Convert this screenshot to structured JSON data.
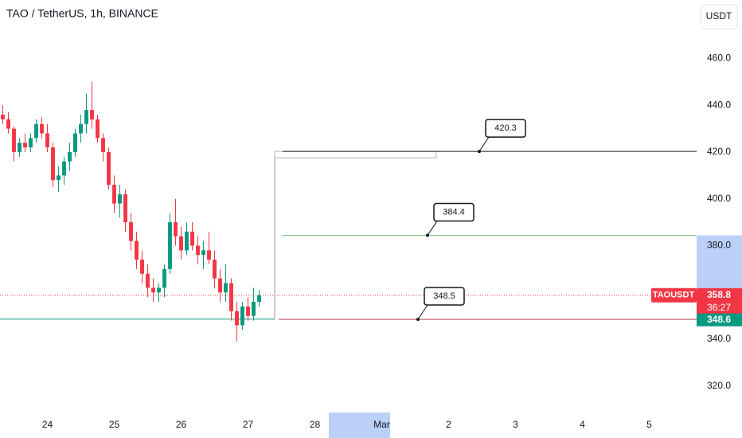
{
  "chart_data": {
    "type": "candlestick",
    "title": "TAO / TetherUS, 1h, BINANCE",
    "currency": "USDT",
    "symbol": "TAOUSDT",
    "countdown": "36:27",
    "up_color": "#089981",
    "down_color": "#f23645",
    "x": [
      -16,
      -14,
      -12,
      -10,
      -8,
      -6,
      -4,
      -2,
      0,
      2,
      4,
      6,
      8,
      10,
      12,
      14,
      16,
      18,
      20,
      22,
      24,
      26,
      28,
      30,
      32,
      34,
      36,
      38,
      40,
      42,
      44,
      46,
      48,
      50,
      52,
      54,
      56,
      58,
      60,
      62,
      64,
      66,
      68,
      70,
      72,
      74,
      76
    ],
    "open": [
      436,
      434,
      430,
      420,
      424,
      422,
      426,
      432,
      428,
      422,
      408,
      410,
      416,
      420,
      428,
      432,
      438,
      434,
      426,
      420,
      406,
      398,
      402,
      390,
      382,
      374,
      368,
      362,
      360,
      362,
      370,
      390,
      384,
      378,
      386,
      380,
      376,
      378,
      374,
      366,
      360,
      364,
      352,
      346,
      354,
      350,
      356
    ],
    "high": [
      440,
      437,
      431,
      426,
      428,
      428,
      434,
      435,
      432,
      424,
      414,
      418,
      424,
      430,
      436,
      445,
      450,
      436,
      428,
      422,
      410,
      406,
      404,
      394,
      386,
      378,
      372,
      366,
      364,
      372,
      394,
      400,
      388,
      390,
      390,
      384,
      382,
      386,
      378,
      370,
      372,
      366,
      356,
      356,
      358,
      362,
      361
    ],
    "low": [
      432,
      428,
      416,
      418,
      420,
      420,
      424,
      426,
      420,
      405,
      403,
      406,
      412,
      418,
      424,
      428,
      430,
      424,
      416,
      404,
      394,
      392,
      386,
      378,
      370,
      364,
      358,
      356,
      356,
      358,
      368,
      380,
      374,
      376,
      378,
      372,
      370,
      372,
      362,
      356,
      356,
      348,
      339,
      344,
      348,
      348,
      354
    ],
    "close": [
      434,
      430,
      420,
      424,
      422,
      426,
      432,
      428,
      422,
      408,
      410,
      416,
      420,
      428,
      432,
      438,
      434,
      426,
      420,
      406,
      398,
      402,
      390,
      382,
      374,
      368,
      362,
      360,
      362,
      370,
      390,
      384,
      378,
      386,
      380,
      376,
      378,
      374,
      366,
      360,
      364,
      352,
      346,
      354,
      350,
      356,
      358.8
    ],
    "levels": [
      {
        "value": 420.3,
        "color": "#131722"
      },
      {
        "value": 384.4,
        "color": "#81c784"
      },
      {
        "value": 348.5,
        "color": "#b2384a"
      }
    ],
    "support": {
      "value": 348.6,
      "color": "#089981"
    },
    "y_highlight": [
      358.8,
      384.4
    ],
    "x_highlight": [
      101,
      123
    ],
    "xlim": [
      -17,
      233
    ],
    "ylim": [
      308,
      485
    ],
    "yticks": [
      {
        "value": 460,
        "label": "460.0"
      },
      {
        "value": 440,
        "label": "440.0"
      },
      {
        "value": 420,
        "label": "420.0"
      },
      {
        "value": 400,
        "label": "400.0"
      },
      {
        "value": 380,
        "label": "380.0"
      },
      {
        "value": 340,
        "label": "340.0"
      },
      {
        "value": 320,
        "label": "320.0"
      }
    ],
    "xticks": [
      {
        "value": 0,
        "label": "24"
      },
      {
        "value": 24,
        "label": "25"
      },
      {
        "value": 48,
        "label": "26"
      },
      {
        "value": 72,
        "label": "27"
      },
      {
        "value": 96,
        "label": "28"
      },
      {
        "value": 120,
        "label": "Mar"
      },
      {
        "value": 144,
        "label": "2"
      },
      {
        "value": 168,
        "label": "3"
      },
      {
        "value": 192,
        "label": "4"
      },
      {
        "value": 216,
        "label": "5"
      }
    ]
  }
}
